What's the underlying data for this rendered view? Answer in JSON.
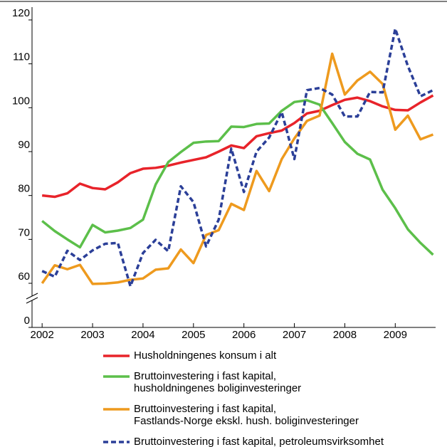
{
  "chart_data": {
    "type": "line",
    "x": [
      2002,
      2002.25,
      2002.5,
      2002.75,
      2003,
      2003.25,
      2003.5,
      2003.75,
      2004,
      2004.25,
      2004.5,
      2004.75,
      2005,
      2005.25,
      2005.5,
      2005.75,
      2006,
      2006.25,
      2006.5,
      2006.75,
      2007,
      2007.25,
      2007.5,
      2007.75,
      2008,
      2008.25,
      2008.5,
      2008.75,
      2009,
      2009.25,
      2009.5,
      2009.75
    ],
    "series": [
      {
        "name": "Husholdningenes konsum i alt",
        "color": "#e8232a",
        "dash": false,
        "values": [
          80,
          79.7,
          80.5,
          82.7,
          81.7,
          81.4,
          83,
          85.1,
          86.1,
          86.3,
          86.8,
          87.5,
          88.1,
          88.7,
          90,
          91.4,
          90.8,
          93.5,
          94.2,
          94.8,
          96.5,
          98.7,
          99.3,
          100.6,
          101.8,
          102.3,
          101.5,
          100.3,
          99.5,
          99.4,
          101.2,
          102.8
        ]
      },
      {
        "name": "Bruttoinvestering i fast kapital, husholdningenes boliginvesteringer",
        "color": "#5cbf4a",
        "dash": false,
        "values": [
          74.2,
          71.9,
          70,
          68.2,
          73.3,
          71.6,
          72,
          72.6,
          74.5,
          82.5,
          87.6,
          89.9,
          92,
          92.3,
          92.4,
          95.7,
          95.6,
          96.3,
          96.4,
          99.3,
          101.3,
          101.7,
          100.7,
          96.5,
          92.2,
          89.5,
          88.2,
          81.3,
          77.1,
          72.3,
          69.2,
          66.5
        ]
      },
      {
        "name": "Bruttoinvestering i fast kapital, Fastlands-Norge ekskl. hush. boliginvesteringer",
        "color": "#ee9a1e",
        "dash": false,
        "values": [
          60,
          64.1,
          63.2,
          64.2,
          59.2,
          59.6,
          60.2,
          60.8,
          61.1,
          63.1,
          63.4,
          67.7,
          64.6,
          71,
          72.1,
          78.1,
          76.7,
          85.6,
          81,
          88.3,
          93,
          97,
          98.2,
          112.3,
          103,
          106.2,
          108.2,
          105.4,
          95,
          98.2,
          92.8,
          93.9
        ]
      },
      {
        "name": "Bruttoinvestering i fast kapital, petroleumsvirksomhet",
        "color": "#2b3f98",
        "dash": true,
        "values": [
          62.8,
          61.5,
          67.4,
          65.3,
          67.5,
          69,
          69.2,
          56,
          66.9,
          69.9,
          67.3,
          82.1,
          78.5,
          68.4,
          74.5,
          90.7,
          80.8,
          90,
          93.2,
          99,
          88.3,
          104,
          104.5,
          103,
          98,
          98,
          103.6,
          103.5,
          118,
          109.5,
          102.6,
          104
        ]
      }
    ],
    "xlim": [
      2001.8,
      2009.8
    ],
    "xticks": [
      2002,
      2003,
      2004,
      2005,
      2006,
      2007,
      2008,
      2009
    ],
    "ylim": [
      0,
      120
    ],
    "yticks": [
      0,
      60,
      70,
      80,
      90,
      100,
      110,
      120
    ],
    "ybreak": [
      0,
      60
    ]
  }
}
